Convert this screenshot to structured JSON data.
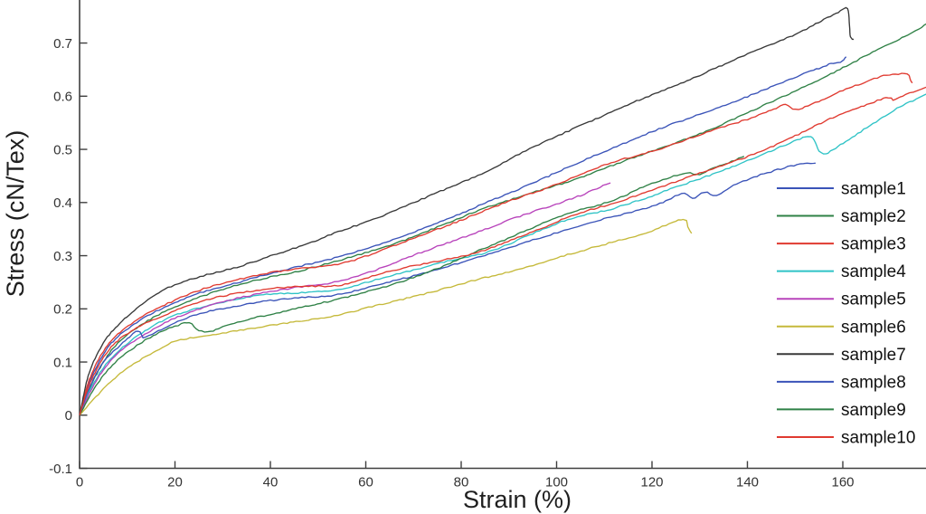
{
  "figure": {
    "background": "#ffffff",
    "axis_color": "#3f3f3f",
    "text_color": "#333333"
  },
  "chart_data": {
    "type": "line",
    "title": "",
    "xlabel": "Strain (%)",
    "ylabel": "Stress (cN/Tex)",
    "xlim": [
      0,
      177.5
    ],
    "ylim": [
      -0.1,
      0.78
    ],
    "x_ticks": [
      "0",
      "20",
      "40",
      "60",
      "80",
      "100",
      "120",
      "140",
      "160"
    ],
    "y_ticks": [
      "-0.1",
      "0",
      "0.1",
      "0.2",
      "0.3",
      "0.4",
      "0.5",
      "0.6",
      "0.7"
    ],
    "grid": false,
    "legend_position": "right-inside",
    "series": [
      {
        "name": "sample1",
        "color": "#3a53b8",
        "points": [
          [
            0,
            0
          ],
          [
            2,
            0.06
          ],
          [
            5,
            0.115
          ],
          [
            8,
            0.148
          ],
          [
            12,
            0.175
          ],
          [
            16,
            0.195
          ],
          [
            20,
            0.211
          ],
          [
            26,
            0.232
          ],
          [
            33,
            0.25
          ],
          [
            40,
            0.266
          ],
          [
            48,
            0.284
          ],
          [
            55,
            0.3
          ],
          [
            65,
            0.327
          ],
          [
            75,
            0.362
          ],
          [
            85,
            0.398
          ],
          [
            95,
            0.437
          ],
          [
            101,
            0.461
          ],
          [
            110,
            0.495
          ],
          [
            120,
            0.534
          ],
          [
            130,
            0.565
          ],
          [
            140,
            0.6
          ],
          [
            148,
            0.628
          ],
          [
            155,
            0.652
          ],
          [
            158,
            0.663
          ],
          [
            159.5,
            0.664
          ],
          [
            160.2,
            0.67
          ],
          [
            160.7,
            0.674
          ]
        ]
      },
      {
        "name": "sample2",
        "color": "#2f8146",
        "points": [
          [
            0,
            0
          ],
          [
            2,
            0.05
          ],
          [
            5,
            0.1
          ],
          [
            8,
            0.135
          ],
          [
            12,
            0.163
          ],
          [
            16,
            0.186
          ],
          [
            20,
            0.204
          ],
          [
            26,
            0.225
          ],
          [
            33,
            0.244
          ],
          [
            40,
            0.26
          ],
          [
            48,
            0.276
          ],
          [
            55,
            0.292
          ],
          [
            65,
            0.32
          ],
          [
            75,
            0.353
          ],
          [
            85,
            0.39
          ],
          [
            95,
            0.418
          ],
          [
            103,
            0.44
          ],
          [
            110,
            0.465
          ],
          [
            120,
            0.496
          ],
          [
            130,
            0.53
          ],
          [
            140,
            0.568
          ],
          [
            150,
            0.61
          ],
          [
            160,
            0.653
          ],
          [
            168,
            0.69
          ],
          [
            173,
            0.713
          ],
          [
            177.5,
            0.736
          ]
        ]
      },
      {
        "name": "sample3",
        "color": "#e03a30",
        "points": [
          [
            0,
            0
          ],
          [
            2,
            0.065
          ],
          [
            5,
            0.12
          ],
          [
            8,
            0.152
          ],
          [
            12,
            0.18
          ],
          [
            16,
            0.2
          ],
          [
            20,
            0.216
          ],
          [
            26,
            0.237
          ],
          [
            33,
            0.255
          ],
          [
            40,
            0.268
          ],
          [
            48,
            0.277
          ],
          [
            55,
            0.286
          ],
          [
            65,
            0.315
          ],
          [
            75,
            0.35
          ],
          [
            85,
            0.385
          ],
          [
            95,
            0.418
          ],
          [
            100,
            0.435
          ],
          [
            110,
            0.47
          ],
          [
            120,
            0.497
          ],
          [
            130,
            0.527
          ],
          [
            140,
            0.557
          ],
          [
            146,
            0.578
          ],
          [
            148,
            0.586
          ],
          [
            149.5,
            0.575
          ],
          [
            151.5,
            0.577
          ],
          [
            155,
            0.59
          ],
          [
            160,
            0.611
          ],
          [
            165,
            0.628
          ],
          [
            168.5,
            0.639
          ],
          [
            171,
            0.641
          ],
          [
            173.5,
            0.641
          ],
          [
            174.3,
            0.628
          ],
          [
            174.6,
            0.625
          ]
        ]
      },
      {
        "name": "sample4",
        "color": "#2fc3c6",
        "points": [
          [
            0,
            0
          ],
          [
            2,
            0.045
          ],
          [
            5,
            0.09
          ],
          [
            8,
            0.12
          ],
          [
            12,
            0.148
          ],
          [
            16,
            0.17
          ],
          [
            20,
            0.188
          ],
          [
            26,
            0.205
          ],
          [
            33,
            0.218
          ],
          [
            40,
            0.227
          ],
          [
            48,
            0.232
          ],
          [
            55,
            0.237
          ],
          [
            65,
            0.262
          ],
          [
            75,
            0.285
          ],
          [
            85,
            0.305
          ],
          [
            95,
            0.342
          ],
          [
            103,
            0.369
          ],
          [
            112,
            0.39
          ],
          [
            120,
            0.412
          ],
          [
            130,
            0.445
          ],
          [
            140,
            0.478
          ],
          [
            148,
            0.508
          ],
          [
            152.6,
            0.525
          ],
          [
            154,
            0.518
          ],
          [
            155,
            0.497
          ],
          [
            156.5,
            0.493
          ],
          [
            158.5,
            0.503
          ],
          [
            162,
            0.523
          ],
          [
            167,
            0.551
          ],
          [
            172,
            0.58
          ],
          [
            177.5,
            0.604
          ]
        ]
      },
      {
        "name": "sample5",
        "color": "#b843bb",
        "points": [
          [
            0,
            0
          ],
          [
            2,
            0.04
          ],
          [
            5,
            0.085
          ],
          [
            8,
            0.115
          ],
          [
            12,
            0.143
          ],
          [
            16,
            0.165
          ],
          [
            20,
            0.183
          ],
          [
            26,
            0.202
          ],
          [
            33,
            0.22
          ],
          [
            40,
            0.233
          ],
          [
            48,
            0.243
          ],
          [
            55,
            0.253
          ],
          [
            65,
            0.283
          ],
          [
            75,
            0.317
          ],
          [
            85,
            0.35
          ],
          [
            95,
            0.382
          ],
          [
            105,
            0.414
          ],
          [
            111.3,
            0.437
          ]
        ]
      },
      {
        "name": "sample6",
        "color": "#c5b93a",
        "points": [
          [
            0,
            0
          ],
          [
            2,
            0.02
          ],
          [
            5,
            0.05
          ],
          [
            8,
            0.075
          ],
          [
            12,
            0.1
          ],
          [
            16,
            0.12
          ],
          [
            20,
            0.138
          ],
          [
            26,
            0.15
          ],
          [
            33,
            0.159
          ],
          [
            42,
            0.171
          ],
          [
            48,
            0.18
          ],
          [
            55,
            0.19
          ],
          [
            65,
            0.212
          ],
          [
            75,
            0.235
          ],
          [
            85,
            0.258
          ],
          [
            95,
            0.283
          ],
          [
            105,
            0.308
          ],
          [
            113,
            0.329
          ],
          [
            120,
            0.347
          ],
          [
            126.5,
            0.368
          ],
          [
            127.5,
            0.353
          ],
          [
            128.3,
            0.342
          ]
        ]
      },
      {
        "name": "sample7",
        "color": "#383838",
        "points": [
          [
            0,
            0
          ],
          [
            2,
            0.08
          ],
          [
            5,
            0.135
          ],
          [
            8,
            0.168
          ],
          [
            12,
            0.2
          ],
          [
            16,
            0.227
          ],
          [
            20,
            0.246
          ],
          [
            26,
            0.262
          ],
          [
            33,
            0.278
          ],
          [
            40,
            0.3
          ],
          [
            48,
            0.323
          ],
          [
            55,
            0.347
          ],
          [
            65,
            0.381
          ],
          [
            75,
            0.418
          ],
          [
            85,
            0.458
          ],
          [
            97,
            0.512
          ],
          [
            110,
            0.565
          ],
          [
            120,
            0.602
          ],
          [
            130,
            0.64
          ],
          [
            140,
            0.678
          ],
          [
            150,
            0.717
          ],
          [
            156,
            0.744
          ],
          [
            159.5,
            0.759
          ],
          [
            161,
            0.765
          ],
          [
            161.4,
            0.732
          ],
          [
            161.6,
            0.71
          ],
          [
            162.3,
            0.707
          ]
        ]
      },
      {
        "name": "sample8",
        "color": "#3a53b8",
        "points": [
          [
            0,
            0
          ],
          [
            2,
            0.05
          ],
          [
            5,
            0.1
          ],
          [
            8,
            0.128
          ],
          [
            10.5,
            0.148
          ],
          [
            12.3,
            0.159
          ],
          [
            13.3,
            0.147
          ],
          [
            14.5,
            0.149
          ],
          [
            16,
            0.156
          ],
          [
            20,
            0.173
          ],
          [
            26,
            0.193
          ],
          [
            33,
            0.206
          ],
          [
            40,
            0.215
          ],
          [
            48,
            0.222
          ],
          [
            55,
            0.229
          ],
          [
            65,
            0.25
          ],
          [
            75,
            0.275
          ],
          [
            85,
            0.3
          ],
          [
            95,
            0.33
          ],
          [
            105,
            0.356
          ],
          [
            112,
            0.374
          ],
          [
            120,
            0.393
          ],
          [
            124,
            0.408
          ],
          [
            126.8,
            0.418
          ],
          [
            128.5,
            0.407
          ],
          [
            131,
            0.419
          ],
          [
            133.5,
            0.412
          ],
          [
            136.5,
            0.43
          ],
          [
            142,
            0.45
          ],
          [
            147,
            0.463
          ],
          [
            151,
            0.471
          ],
          [
            154.3,
            0.474
          ]
        ]
      },
      {
        "name": "sample9",
        "color": "#2f8146",
        "points": [
          [
            0,
            0
          ],
          [
            2,
            0.035
          ],
          [
            5,
            0.075
          ],
          [
            8,
            0.103
          ],
          [
            12,
            0.13
          ],
          [
            16,
            0.152
          ],
          [
            20,
            0.168
          ],
          [
            23,
            0.174
          ],
          [
            25,
            0.16
          ],
          [
            27.5,
            0.158
          ],
          [
            30,
            0.165
          ],
          [
            36,
            0.181
          ],
          [
            42,
            0.194
          ],
          [
            48,
            0.206
          ],
          [
            55,
            0.219
          ],
          [
            65,
            0.245
          ],
          [
            75,
            0.275
          ],
          [
            85,
            0.315
          ],
          [
            95,
            0.352
          ],
          [
            103,
            0.381
          ],
          [
            112,
            0.405
          ],
          [
            120,
            0.435
          ],
          [
            127,
            0.455
          ],
          [
            130,
            0.453
          ],
          [
            133,
            0.466
          ],
          [
            136,
            0.474
          ],
          [
            139.3,
            0.487
          ]
        ]
      },
      {
        "name": "sample10",
        "color": "#e03a30",
        "points": [
          [
            0,
            0
          ],
          [
            2,
            0.055
          ],
          [
            5,
            0.108
          ],
          [
            8,
            0.14
          ],
          [
            12,
            0.165
          ],
          [
            16,
            0.182
          ],
          [
            20,
            0.196
          ],
          [
            26,
            0.215
          ],
          [
            33,
            0.23
          ],
          [
            40,
            0.238
          ],
          [
            48,
            0.242
          ],
          [
            55,
            0.246
          ],
          [
            65,
            0.27
          ],
          [
            75,
            0.29
          ],
          [
            85,
            0.31
          ],
          [
            95,
            0.345
          ],
          [
            103,
            0.375
          ],
          [
            112,
            0.398
          ],
          [
            120,
            0.424
          ],
          [
            130,
            0.455
          ],
          [
            139.5,
            0.485
          ],
          [
            150,
            0.525
          ],
          [
            158.5,
            0.562
          ],
          [
            165,
            0.585
          ],
          [
            169.5,
            0.598
          ],
          [
            170.5,
            0.592
          ],
          [
            172,
            0.598
          ],
          [
            177.5,
            0.617
          ]
        ]
      }
    ]
  }
}
